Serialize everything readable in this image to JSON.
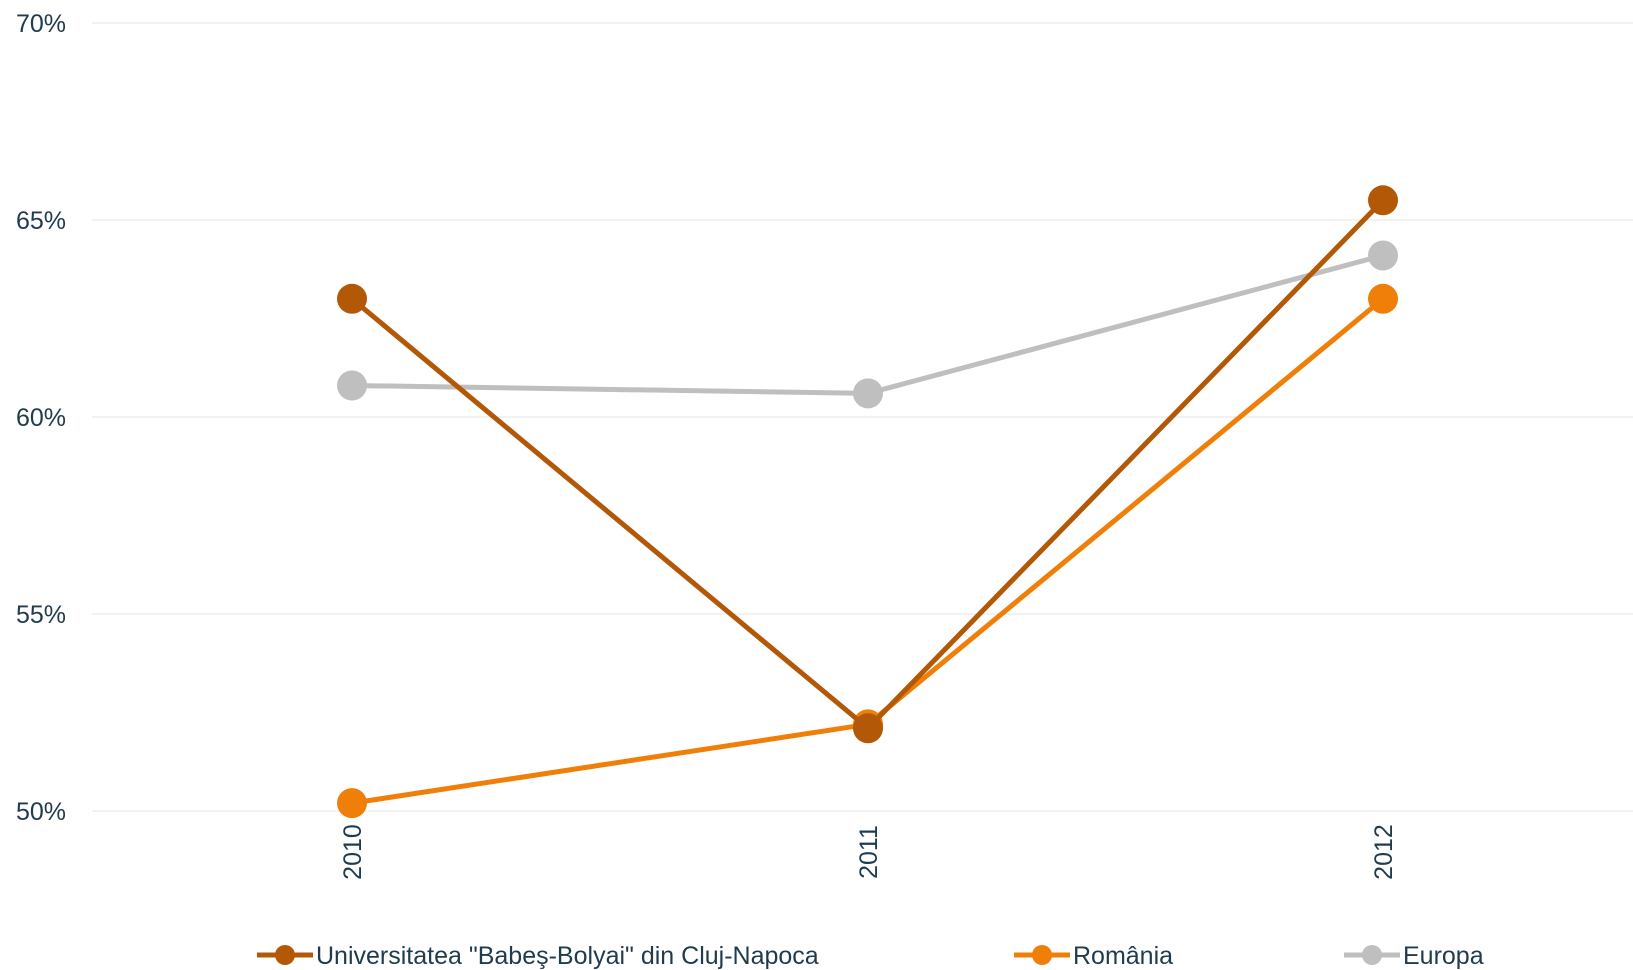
{
  "chart_data": {
    "type": "line",
    "categories": [
      "2010",
      "2011",
      "2012"
    ],
    "ylim": [
      50,
      70
    ],
    "yticks": [
      "50%",
      "55%",
      "60%",
      "65%",
      "70%"
    ],
    "grid": true,
    "legend_position": "bottom",
    "series": [
      {
        "name": "Universitatea \"Babeş-Bolyai\" din Cluj-Napoca",
        "values": [
          63.0,
          52.1,
          65.5
        ],
        "color": "#b35806"
      },
      {
        "name": "România",
        "values": [
          50.2,
          52.2,
          63.0
        ],
        "color": "#f07f09"
      },
      {
        "name": "Europa",
        "values": [
          60.8,
          60.6,
          64.1
        ],
        "color": "#bfbfbf"
      }
    ]
  }
}
